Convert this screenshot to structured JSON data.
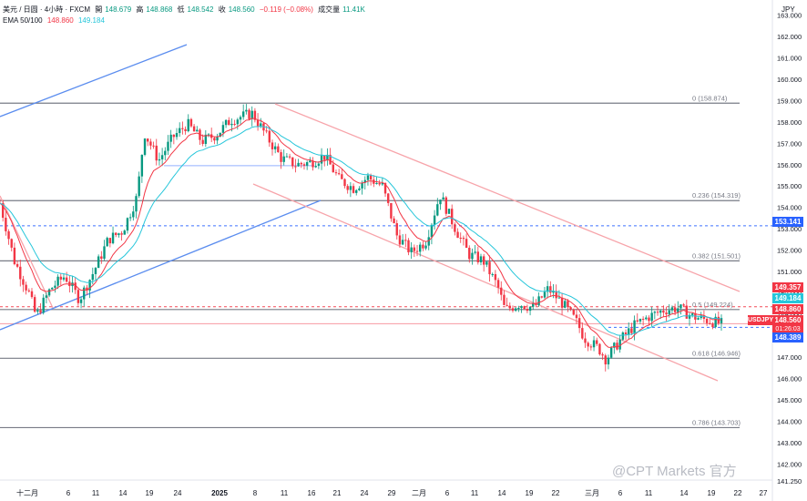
{
  "header": {
    "symbol": "美元 / 日圆 · 4小時 · FXCM",
    "open_label": "開",
    "open": "148.679",
    "high_label": "高",
    "high": "148.868",
    "low_label": "低",
    "low": "148.542",
    "close_label": "收",
    "close": "148.560",
    "change": "−0.119 (−0.08%)",
    "volume_label": "成交量",
    "volume": "11.41K",
    "ema_label": "EMA 50/100",
    "ema50": "148.860",
    "ema100": "149.184"
  },
  "currency": "JPY",
  "price_tags": [
    {
      "value": "153.141",
      "color": "#2962ff"
    },
    {
      "value": "149.357",
      "color": "#f23645"
    },
    {
      "value": "149.184",
      "color": "#26c6da"
    },
    {
      "value": "148.860",
      "color": "#f23645"
    },
    {
      "value": "148.560",
      "color": "#f23645"
    },
    {
      "value": "01:26:03",
      "color": "#f23645"
    },
    {
      "value": "148.389",
      "color": "#2962ff"
    }
  ],
  "symbol_tag": "USDJPY",
  "watermark": "@CPT Markets 官方",
  "chart_data": {
    "type": "candlestick",
    "title": "",
    "xlabel": "",
    "ylabel": "",
    "ylim": [
      141.25,
      163.7
    ],
    "yticks": [
      "163.000",
      "162.000",
      "161.000",
      "160.000",
      "159.000",
      "158.000",
      "157.000",
      "156.000",
      "155.000",
      "154.000",
      "153.000",
      "152.000",
      "151.000",
      "150.000",
      "149.000",
      "148.000",
      "147.000",
      "146.000",
      "145.000",
      "144.000",
      "143.000",
      "142.000",
      "141.250"
    ],
    "xticks": [
      "十二月",
      "6",
      "11",
      "14",
      "19",
      "24",
      "2025",
      "8",
      "11",
      "16",
      "21",
      "24",
      "29",
      "二月",
      "6",
      "11",
      "14",
      "19",
      "22",
      "三月",
      "6",
      "11",
      "14",
      "19",
      "22",
      "27"
    ],
    "fib_levels": [
      {
        "label": "0 (158.874)",
        "value": 158.874
      },
      {
        "label": "0.236 (154.319)",
        "value": 154.319
      },
      {
        "label": "0.382 (151.501)",
        "value": 151.501
      },
      {
        "label": "0.5 (149.224)",
        "value": 149.224
      },
      {
        "label": "0.618 (146.946)",
        "value": 146.946
      },
      {
        "label": "0.786 (143.703)",
        "value": 143.703
      }
    ],
    "horizontal_lines": [
      {
        "value": 155.95,
        "color": "#2962ff"
      },
      {
        "value": 153.141,
        "color": "#2962ff",
        "dashed": true
      },
      {
        "value": 149.357,
        "color": "#f23645",
        "dashed": true
      },
      {
        "value": 148.389,
        "color": "#2962ff",
        "dashed": true
      },
      {
        "value": 148.56,
        "color": "#f23645"
      }
    ],
    "close_path": [
      [
        0.0,
        154.2
      ],
      [
        0.02,
        151.5
      ],
      [
        0.04,
        150.0
      ],
      [
        0.05,
        148.9
      ],
      [
        0.07,
        150.2
      ],
      [
        0.09,
        150.8
      ],
      [
        0.11,
        149.7
      ],
      [
        0.13,
        151.0
      ],
      [
        0.15,
        152.5
      ],
      [
        0.17,
        152.9
      ],
      [
        0.19,
        154.5
      ],
      [
        0.2,
        157.5
      ],
      [
        0.22,
        156.2
      ],
      [
        0.24,
        157.3
      ],
      [
        0.26,
        157.9
      ],
      [
        0.28,
        157.1
      ],
      [
        0.3,
        157.4
      ],
      [
        0.32,
        158.1
      ],
      [
        0.35,
        158.4
      ],
      [
        0.37,
        157.3
      ],
      [
        0.39,
        156.3
      ],
      [
        0.41,
        156.0
      ],
      [
        0.43,
        156.1
      ],
      [
        0.45,
        156.4
      ],
      [
        0.47,
        155.3
      ],
      [
        0.49,
        154.9
      ],
      [
        0.51,
        155.4
      ],
      [
        0.53,
        155.0
      ],
      [
        0.55,
        152.7
      ],
      [
        0.57,
        151.9
      ],
      [
        0.59,
        152.4
      ],
      [
        0.61,
        154.6
      ],
      [
        0.63,
        153.1
      ],
      [
        0.65,
        151.8
      ],
      [
        0.67,
        151.5
      ],
      [
        0.69,
        150.3
      ],
      [
        0.7,
        149.2
      ],
      [
        0.72,
        149.5
      ],
      [
        0.74,
        149.3
      ],
      [
        0.76,
        150.2
      ],
      [
        0.78,
        149.5
      ],
      [
        0.8,
        148.6
      ],
      [
        0.81,
        147.9
      ],
      [
        0.83,
        147.4
      ],
      [
        0.84,
        146.9
      ],
      [
        0.86,
        147.8
      ],
      [
        0.88,
        148.5
      ],
      [
        0.9,
        148.9
      ],
      [
        0.92,
        149.2
      ],
      [
        0.94,
        149.3
      ],
      [
        0.96,
        148.9
      ],
      [
        1.0,
        148.56
      ]
    ],
    "series": [
      {
        "name": "EMA 50",
        "color": "#f23645"
      },
      {
        "name": "EMA 100",
        "color": "#26c6da"
      }
    ]
  }
}
